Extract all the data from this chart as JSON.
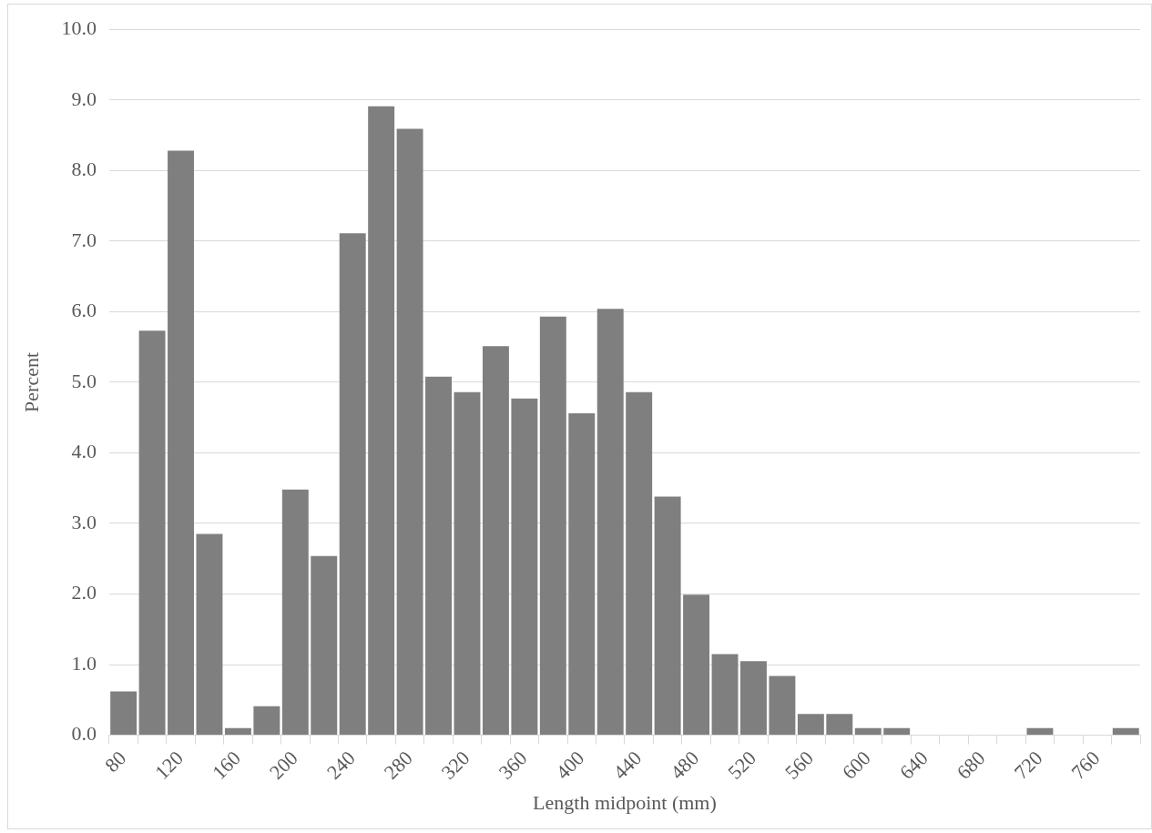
{
  "chart_data": {
    "type": "bar",
    "xlabel": "Length midpoint (mm)",
    "ylabel": "Percent",
    "categories": [
      "80",
      null,
      "120",
      null,
      "160",
      null,
      "200",
      null,
      "240",
      null,
      "280",
      null,
      "320",
      null,
      "360",
      null,
      "400",
      null,
      "440",
      null,
      "480",
      null,
      "520",
      null,
      "560",
      null,
      "600",
      null,
      "640",
      null,
      "680",
      null,
      "720",
      null,
      "760",
      null
    ],
    "values": [
      0.62,
      5.73,
      8.28,
      2.85,
      0.1,
      0.41,
      3.48,
      2.54,
      7.11,
      8.91,
      8.59,
      5.08,
      4.86,
      5.51,
      4.77,
      5.93,
      4.56,
      6.04,
      4.86,
      3.38,
      1.99,
      1.15,
      1.05,
      0.84,
      0.3,
      0.3,
      0.1,
      0.1,
      0,
      0,
      0,
      0,
      0.1,
      0,
      0,
      0.1
    ],
    "color": "#7f7f7f",
    "ylim": [
      0,
      10
    ],
    "yticks": [
      {
        "value": 0,
        "label": "0.0"
      },
      {
        "value": 1,
        "label": "1.0"
      },
      {
        "value": 2,
        "label": "2.0"
      },
      {
        "value": 3,
        "label": "3.0"
      },
      {
        "value": 4,
        "label": "4.0"
      },
      {
        "value": 5,
        "label": "5.0"
      },
      {
        "value": 6,
        "label": "6.0"
      },
      {
        "value": 7,
        "label": "7.0"
      },
      {
        "value": 8,
        "label": "8.0"
      },
      {
        "value": 9,
        "label": "9.0"
      },
      {
        "value": 10,
        "label": "10.0"
      }
    ],
    "grid": "y",
    "legend": false
  }
}
